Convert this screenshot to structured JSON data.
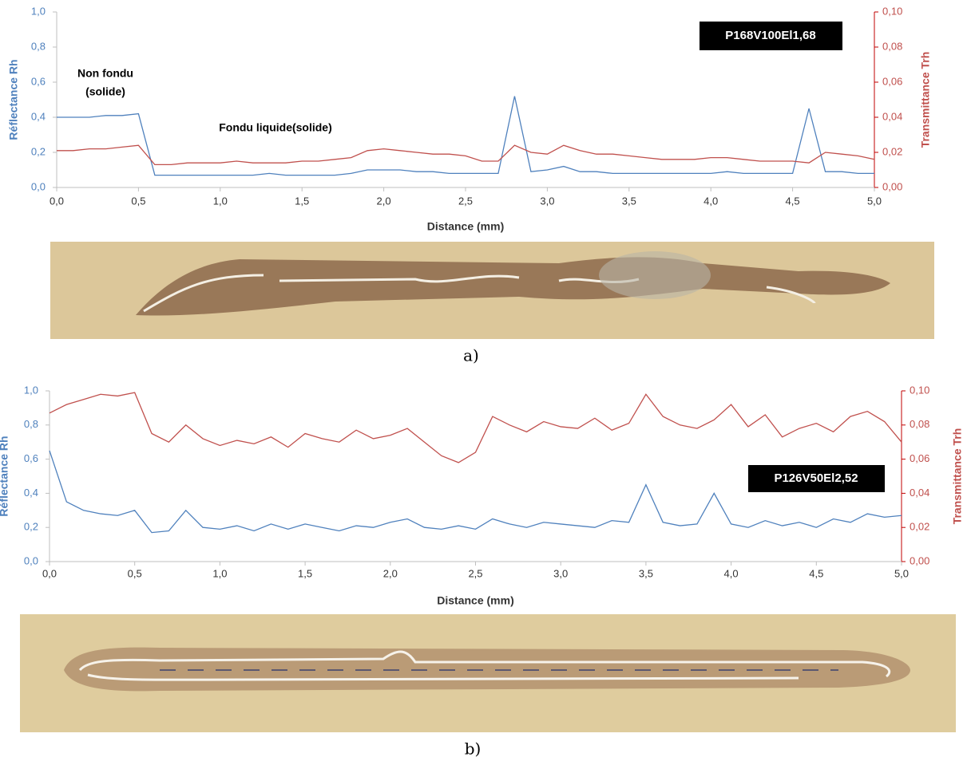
{
  "chart_data": [
    {
      "type": "line",
      "xlabel": "Distance (mm)",
      "ylabel": "Réflectance Rh",
      "y2label": "Transmittance Trh",
      "annotations": [
        "Non fondu",
        "(solide)",
        "Fondu liquide(solide)",
        "P168V100El1,68"
      ],
      "x": [
        0,
        0.1,
        0.2,
        0.3,
        0.4,
        0.5,
        0.6,
        0.7,
        0.8,
        0.9,
        1.0,
        1.1,
        1.2,
        1.3,
        1.4,
        1.5,
        1.6,
        1.7,
        1.8,
        1.9,
        2.0,
        2.1,
        2.2,
        2.3,
        2.4,
        2.5,
        2.6,
        2.7,
        2.8,
        2.9,
        3.0,
        3.1,
        3.2,
        3.3,
        3.4,
        3.5,
        3.6,
        3.7,
        3.8,
        3.9,
        4.0,
        4.1,
        4.2,
        4.3,
        4.4,
        4.5,
        4.6,
        4.7,
        4.8,
        4.9,
        5.0
      ],
      "series": [
        {
          "color": "#4f81bd",
          "values": [
            0.4,
            0.4,
            0.4,
            0.41,
            0.41,
            0.42,
            0.07,
            0.07,
            0.07,
            0.07,
            0.07,
            0.07,
            0.07,
            0.08,
            0.07,
            0.07,
            0.07,
            0.07,
            0.08,
            0.1,
            0.1,
            0.1,
            0.09,
            0.09,
            0.08,
            0.08,
            0.08,
            0.08,
            0.52,
            0.09,
            0.1,
            0.12,
            0.09,
            0.09,
            0.08,
            0.08,
            0.08,
            0.08,
            0.08,
            0.08,
            0.08,
            0.09,
            0.08,
            0.08,
            0.08,
            0.08,
            0.45,
            0.09,
            0.09,
            0.08,
            0.08
          ]
        },
        {
          "color": "#c0504d",
          "axis": "y2",
          "values": [
            0.021,
            0.021,
            0.022,
            0.022,
            0.023,
            0.024,
            0.013,
            0.013,
            0.014,
            0.014,
            0.014,
            0.015,
            0.014,
            0.014,
            0.014,
            0.015,
            0.015,
            0.016,
            0.017,
            0.021,
            0.022,
            0.021,
            0.02,
            0.019,
            0.019,
            0.018,
            0.015,
            0.015,
            0.024,
            0.02,
            0.019,
            0.024,
            0.021,
            0.019,
            0.019,
            0.018,
            0.017,
            0.016,
            0.016,
            0.016,
            0.017,
            0.017,
            0.016,
            0.015,
            0.015,
            0.015,
            0.014,
            0.02,
            0.019,
            0.018,
            0.016
          ]
        }
      ],
      "xlim": [
        0,
        5
      ],
      "ylim": [
        0,
        1
      ],
      "y2lim": [
        0,
        0.1
      ],
      "xticks": [
        {
          "value": 0,
          "label": "0,0"
        },
        {
          "value": 0.5,
          "label": "0,5"
        },
        {
          "value": 1,
          "label": "1,0"
        },
        {
          "value": 1.5,
          "label": "1,5"
        },
        {
          "value": 2,
          "label": "2,0"
        },
        {
          "value": 2.5,
          "label": "2,5"
        },
        {
          "value": 3,
          "label": "3,0"
        },
        {
          "value": 3.5,
          "label": "3,5"
        },
        {
          "value": 4,
          "label": "4,0"
        },
        {
          "value": 4.5,
          "label": "4,5"
        },
        {
          "value": 5,
          "label": "5,0"
        }
      ],
      "yticks": [
        {
          "value": 0,
          "label": "0,0"
        },
        {
          "value": 0.2,
          "label": "0,2"
        },
        {
          "value": 0.4,
          "label": "0,4"
        },
        {
          "value": 0.6,
          "label": "0,6"
        },
        {
          "value": 0.8,
          "label": "0,8"
        },
        {
          "value": 1,
          "label": "1,0"
        }
      ],
      "y2ticks": [
        {
          "value": 0,
          "label": "0,00"
        },
        {
          "value": 0.02,
          "label": "0,02"
        },
        {
          "value": 0.04,
          "label": "0,04"
        },
        {
          "value": 0.06,
          "label": "0,06"
        },
        {
          "value": 0.08,
          "label": "0,08"
        },
        {
          "value": 0.1,
          "label": "0,10"
        }
      ]
    },
    {
      "type": "line",
      "xlabel": "Distance (mm)",
      "ylabel": "Réflectance Rh",
      "y2label": "Transmittance Trh",
      "annotations": [
        "P126V50El2,52"
      ],
      "x": [
        0,
        0.1,
        0.2,
        0.3,
        0.4,
        0.5,
        0.6,
        0.7,
        0.8,
        0.9,
        1.0,
        1.1,
        1.2,
        1.3,
        1.4,
        1.5,
        1.6,
        1.7,
        1.8,
        1.9,
        2.0,
        2.1,
        2.2,
        2.3,
        2.4,
        2.5,
        2.6,
        2.7,
        2.8,
        2.9,
        3.0,
        3.1,
        3.2,
        3.3,
        3.4,
        3.5,
        3.6,
        3.7,
        3.8,
        3.9,
        4.0,
        4.1,
        4.2,
        4.3,
        4.4,
        4.5,
        4.6,
        4.7,
        4.8,
        4.9,
        5.0
      ],
      "series": [
        {
          "color": "#4f81bd",
          "values": [
            0.65,
            0.35,
            0.3,
            0.28,
            0.27,
            0.3,
            0.17,
            0.18,
            0.3,
            0.2,
            0.19,
            0.21,
            0.18,
            0.22,
            0.19,
            0.22,
            0.2,
            0.18,
            0.21,
            0.2,
            0.23,
            0.25,
            0.2,
            0.19,
            0.21,
            0.19,
            0.25,
            0.22,
            0.2,
            0.23,
            0.22,
            0.21,
            0.2,
            0.24,
            0.23,
            0.45,
            0.23,
            0.21,
            0.22,
            0.4,
            0.22,
            0.2,
            0.24,
            0.21,
            0.23,
            0.2,
            0.25,
            0.23,
            0.28,
            0.26,
            0.27
          ]
        },
        {
          "color": "#c0504d",
          "axis": "y2",
          "values": [
            0.087,
            0.092,
            0.095,
            0.098,
            0.097,
            0.099,
            0.075,
            0.07,
            0.08,
            0.072,
            0.068,
            0.071,
            0.069,
            0.073,
            0.067,
            0.075,
            0.072,
            0.07,
            0.077,
            0.072,
            0.074,
            0.078,
            0.07,
            0.062,
            0.058,
            0.064,
            0.085,
            0.08,
            0.076,
            0.082,
            0.079,
            0.078,
            0.084,
            0.077,
            0.081,
            0.098,
            0.085,
            0.08,
            0.078,
            0.083,
            0.092,
            0.079,
            0.086,
            0.073,
            0.078,
            0.081,
            0.076,
            0.085,
            0.088,
            0.082,
            0.07
          ]
        }
      ],
      "xlim": [
        0,
        5
      ],
      "ylim": [
        0,
        1
      ],
      "y2lim": [
        0,
        0.1
      ],
      "xticks": [
        {
          "value": 0,
          "label": "0,0"
        },
        {
          "value": 0.5,
          "label": "0,5"
        },
        {
          "value": 1,
          "label": "1,0"
        },
        {
          "value": 1.5,
          "label": "1,5"
        },
        {
          "value": 2,
          "label": "2,0"
        },
        {
          "value": 2.5,
          "label": "2,5"
        },
        {
          "value": 3,
          "label": "3,0"
        },
        {
          "value": 3.5,
          "label": "3,5"
        },
        {
          "value": 4,
          "label": "4,0"
        },
        {
          "value": 4.5,
          "label": "4,5"
        },
        {
          "value": 5,
          "label": "5,0"
        }
      ],
      "yticks": [
        {
          "value": 0,
          "label": "0,0"
        },
        {
          "value": 0.2,
          "label": "0,2"
        },
        {
          "value": 0.4,
          "label": "0,4"
        },
        {
          "value": 0.6,
          "label": "0,6"
        },
        {
          "value": 0.8,
          "label": "0,8"
        },
        {
          "value": 1,
          "label": "1,0"
        }
      ],
      "y2ticks": [
        {
          "value": 0,
          "label": "0,00"
        },
        {
          "value": 0.02,
          "label": "0,02"
        },
        {
          "value": 0.04,
          "label": "0,04"
        },
        {
          "value": 0.06,
          "label": "0,06"
        },
        {
          "value": 0.08,
          "label": "0,08"
        },
        {
          "value": 0.1,
          "label": "0,10"
        }
      ]
    }
  ],
  "captions": [
    "a)",
    "b)"
  ]
}
